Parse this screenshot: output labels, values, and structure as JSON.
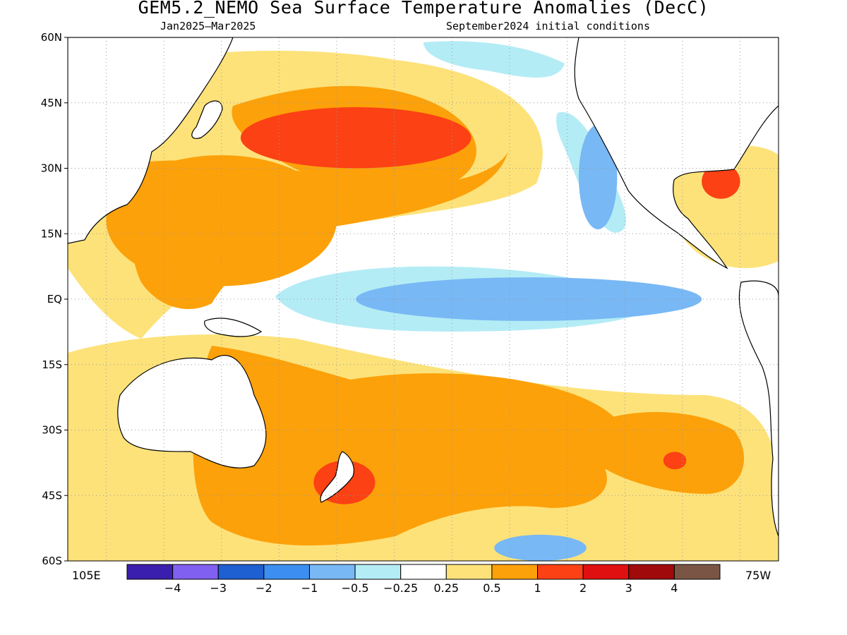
{
  "chart_data": {
    "type": "heatmap",
    "title": "GEM5.2_NEMO Sea Surface Temperature Anomalies (DecC)",
    "subtitle_left": "Jan2025—Mar2025",
    "subtitle_right": "September2024 initial conditions",
    "y_ticks": [
      "60N",
      "45N",
      "30N",
      "15N",
      "EQ",
      "15S",
      "30S",
      "45S",
      "60S"
    ],
    "y_values": [
      60,
      45,
      30,
      15,
      0,
      -15,
      -30,
      -45,
      -60
    ],
    "ylim": [
      -60,
      60
    ],
    "x_labels": {
      "left": "105E",
      "right": "75W"
    },
    "grid": true,
    "colorbar": {
      "placement": "bottom",
      "colors": [
        "#3a1fae",
        "#8060f0",
        "#1e5fd2",
        "#3c8ff0",
        "#78b8f5",
        "#b4ecf5",
        "#ffffff",
        "#fde27a",
        "#fca10a",
        "#fc4114",
        "#e01010",
        "#a00a0a",
        "#7a5546"
      ],
      "tick_labels": [
        "-4",
        "-3",
        "-2",
        "-1",
        "-0.5",
        "-0.25",
        "0.25",
        "0.5",
        "1",
        "2",
        "3",
        "4"
      ]
    },
    "regions": [
      {
        "name": "tropical-pacific-cold-tongue",
        "level": "-1",
        "color": "#3c8ff0",
        "cx": 215,
        "cy": 0,
        "rx": 30,
        "ry": 3
      },
      {
        "name": "equatorial-cold-band",
        "level": "-0.5",
        "color": "#78b8f5",
        "cx": 220,
        "cy": 0,
        "rx": 45,
        "ry": 5
      },
      {
        "name": "north-pacific-warm-blob",
        "level": "1",
        "color": "#fc4114",
        "cx": 175,
        "cy": 37,
        "rx": 30,
        "ry": 7
      },
      {
        "name": "western-pacific-warm-pool",
        "level": "0.5",
        "color": "#fca10a",
        "cx": 140,
        "cy": 18,
        "rx": 30,
        "ry": 15
      },
      {
        "name": "south-pacific-warm",
        "level": "0.5",
        "color": "#fca10a",
        "cx": 195,
        "cy": -32,
        "rx": 50,
        "ry": 15
      },
      {
        "name": "new-zealand-warm",
        "level": "1",
        "color": "#fc4114",
        "cx": 172,
        "cy": -42,
        "rx": 8,
        "ry": 5
      },
      {
        "name": "southeast-pacific-warm",
        "level": "1",
        "color": "#fc4114",
        "cx": 258,
        "cy": -37,
        "rx": 3,
        "ry": 2
      },
      {
        "name": "california-current-cold",
        "level": "-0.5",
        "color": "#78b8f5",
        "cx": 238,
        "cy": 28,
        "rx": 5,
        "ry": 12
      },
      {
        "name": "gulf-of-mexico-warm",
        "level": "1",
        "color": "#fc4114",
        "cx": 270,
        "cy": 27,
        "rx": 5,
        "ry": 4
      },
      {
        "name": "south-ocean-cold",
        "level": "-0.5",
        "color": "#78b8f5",
        "cx": 223,
        "cy": -57,
        "rx": 12,
        "ry": 3
      }
    ]
  }
}
